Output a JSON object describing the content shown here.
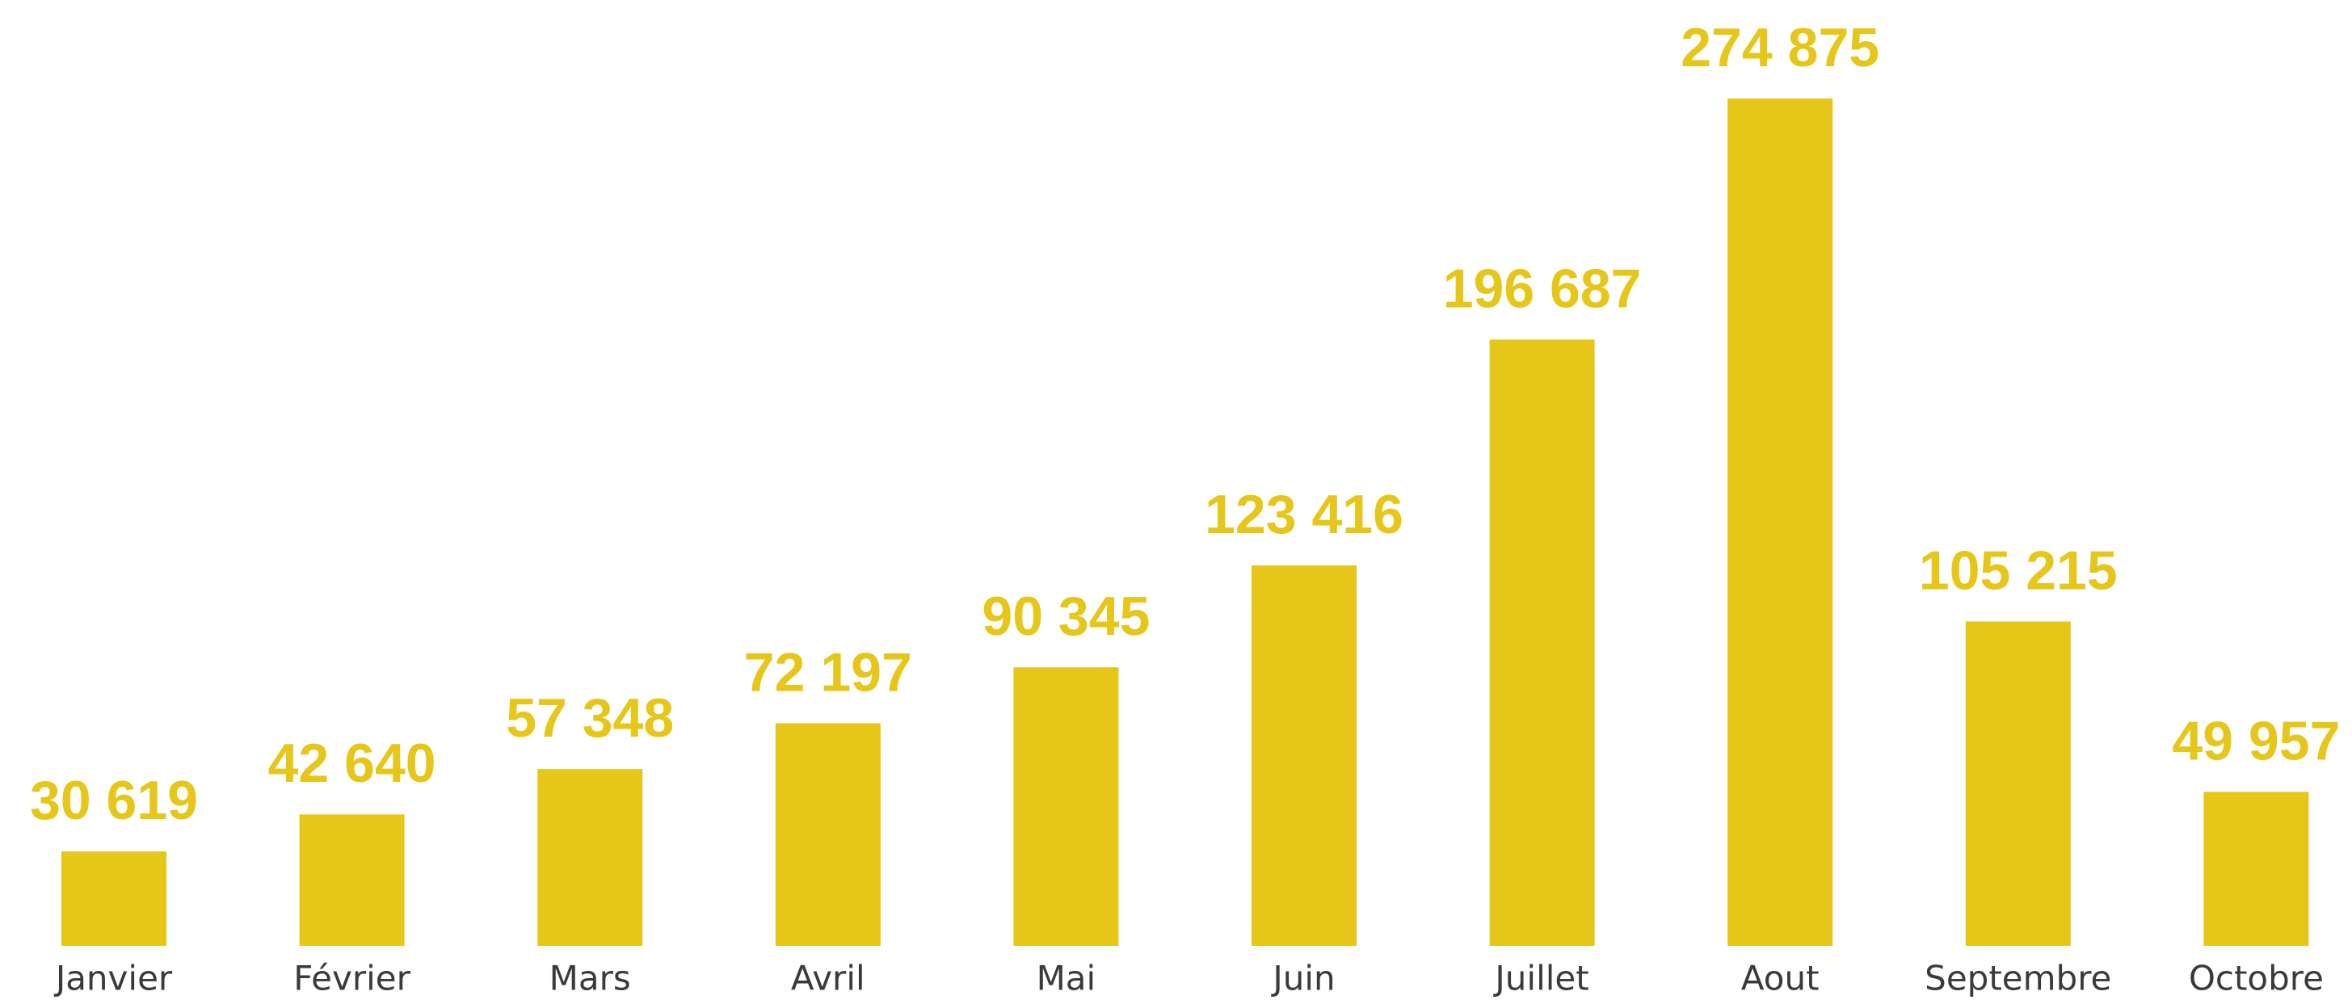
{
  "chart_data": {
    "type": "bar",
    "categories": [
      "Janvier",
      "Février",
      "Mars",
      "Avril",
      "Mai",
      "Juin",
      "Juillet",
      "Aout",
      "Septembre",
      "Octobre"
    ],
    "values": [
      30619,
      42640,
      57348,
      72197,
      90345,
      123416,
      196687,
      274875,
      105215,
      49957
    ],
    "value_labels": [
      "30 619",
      "42 640",
      "57 348",
      "72 197",
      "90 345",
      "123 416",
      "196 687",
      "274 875",
      "105 215",
      "49 957"
    ],
    "color": "#e6c619"
  }
}
